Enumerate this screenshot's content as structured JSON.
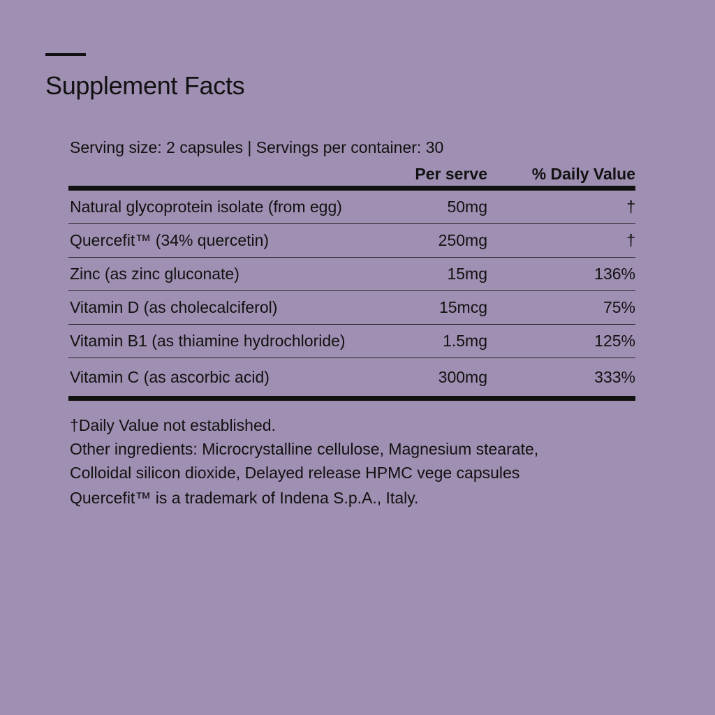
{
  "title": "Supplement Facts",
  "serving": "Serving size: 2 capsules | Servings per container: 30",
  "headers": {
    "per_serve": "Per serve",
    "dv": "% Daily Value"
  },
  "rows": [
    {
      "name": "Natural glycoprotein isolate (from egg)",
      "amount": "50mg",
      "dv": "†"
    },
    {
      "name": "Quercefit™ (34% quercetin)",
      "amount": "250mg",
      "dv": "†"
    },
    {
      "name": "Zinc (as zinc gluconate)",
      "amount": "15mg",
      "dv": "136%"
    },
    {
      "name": "Vitamin D (as cholecalciferol)",
      "amount": "15mcg",
      "dv": "75%"
    },
    {
      "name": "Vitamin B1 (as thiamine hydrochloride)",
      "amount": "1.5mg",
      "dv": "125%"
    },
    {
      "name": "Vitamin C (as ascorbic acid)",
      "amount": "300mg",
      "dv": "333%"
    }
  ],
  "notes": {
    "dv_note": "†Daily Value not established.",
    "other": "Other ingredients: Microcrystalline cellulose, Magnesium stearate, Colloidal silicon dioxide, Delayed release HPMC vege capsules",
    "trademark": "Quercefit™ is a trademark of Indena S.p.A., Italy."
  },
  "colors": {
    "background": "#9f8fb2",
    "text": "#111111"
  }
}
